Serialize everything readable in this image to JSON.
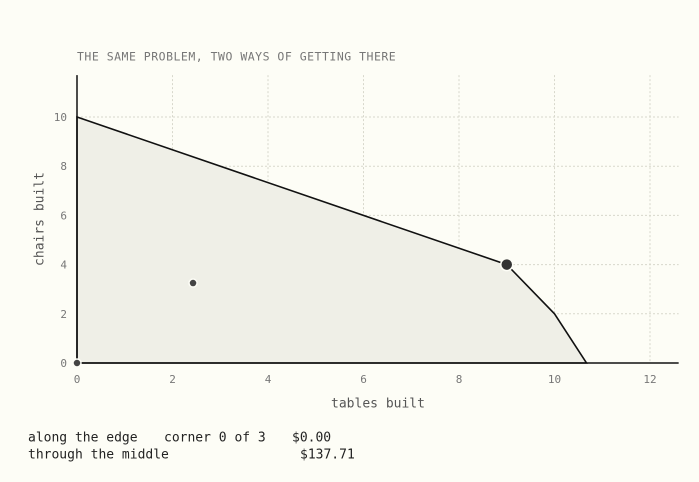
{
  "chart_data": {
    "type": "feasible-region",
    "title": "THE SAME PROBLEM, TWO WAYS OF GETTING THERE",
    "x_label": "tables built",
    "y_label": "chairs built",
    "xlim": [
      0,
      12.6
    ],
    "ylim": [
      0,
      11.7
    ],
    "xticks": [
      0,
      2,
      4,
      6,
      8,
      10,
      12
    ],
    "yticks": [
      0,
      2,
      4,
      6,
      8,
      10
    ],
    "grid": true,
    "region": {
      "x": [
        0,
        0,
        9,
        10,
        10.67
      ],
      "y": [
        0,
        10,
        4,
        2,
        0
      ],
      "color": "#efefe7"
    },
    "points": [
      {
        "x": 9,
        "y": 4,
        "color": "#333333"
      },
      {
        "x": 2.43,
        "y": 3.25,
        "color": "#444444"
      },
      {
        "x": 0,
        "y": 0,
        "color": "#444444"
      }
    ]
  },
  "status": {
    "rows": [
      [
        "along the edge",
        "corner 0 of 3",
        "$0.00"
      ],
      [
        "through the middle",
        "$137.71"
      ]
    ]
  }
}
